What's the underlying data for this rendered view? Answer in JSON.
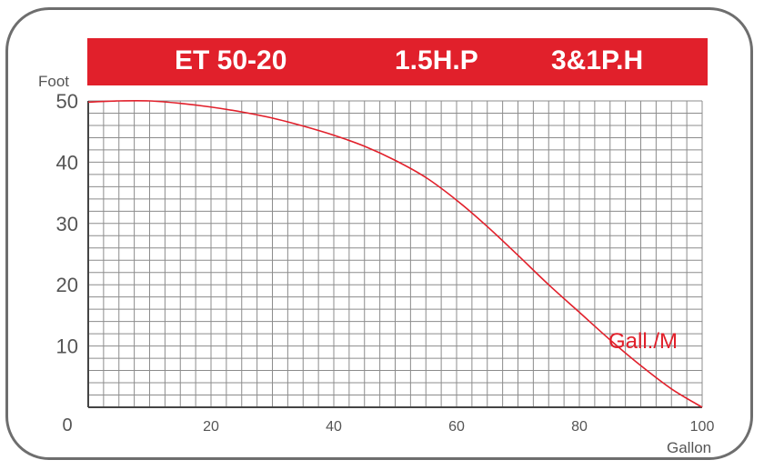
{
  "banner": {
    "model": "ET 50-20",
    "power": "1.5H.P",
    "phase": "3&1P.H"
  },
  "colors": {
    "accent": "#e1202b",
    "grid": "#8c8c8c",
    "frame": "#6e6e6e",
    "text": "#555555"
  },
  "chart_data": {
    "type": "line",
    "title": "",
    "xlabel": "Gallon",
    "ylabel": "Foot",
    "xlim": [
      0,
      100
    ],
    "ylim": [
      0,
      50
    ],
    "grid": true,
    "x_ticks": [
      {
        "value": 0,
        "label": "0"
      },
      {
        "value": 20,
        "label": "20"
      },
      {
        "value": 40,
        "label": "40"
      },
      {
        "value": 60,
        "label": "60"
      },
      {
        "value": 80,
        "label": "80"
      },
      {
        "value": 100,
        "label": "100"
      }
    ],
    "y_ticks": [
      {
        "value": 10,
        "label": "10"
      },
      {
        "value": 20,
        "label": "20"
      },
      {
        "value": 30,
        "label": "30"
      },
      {
        "value": 40,
        "label": "40"
      },
      {
        "value": 50,
        "label": "50"
      }
    ],
    "series": [
      {
        "name": "Gall./M",
        "color": "#e1202b",
        "x": [
          0,
          5,
          10,
          15,
          20,
          25,
          30,
          35,
          40,
          45,
          50,
          55,
          60,
          65,
          70,
          75,
          80,
          85,
          90,
          95,
          100
        ],
        "y": [
          49.8,
          50,
          50,
          49.6,
          49,
          48.2,
          47.2,
          45.9,
          44.4,
          42.6,
          40.3,
          37.5,
          33.8,
          29.5,
          24.8,
          20,
          15.5,
          11,
          6.8,
          3,
          0
        ]
      }
    ]
  }
}
